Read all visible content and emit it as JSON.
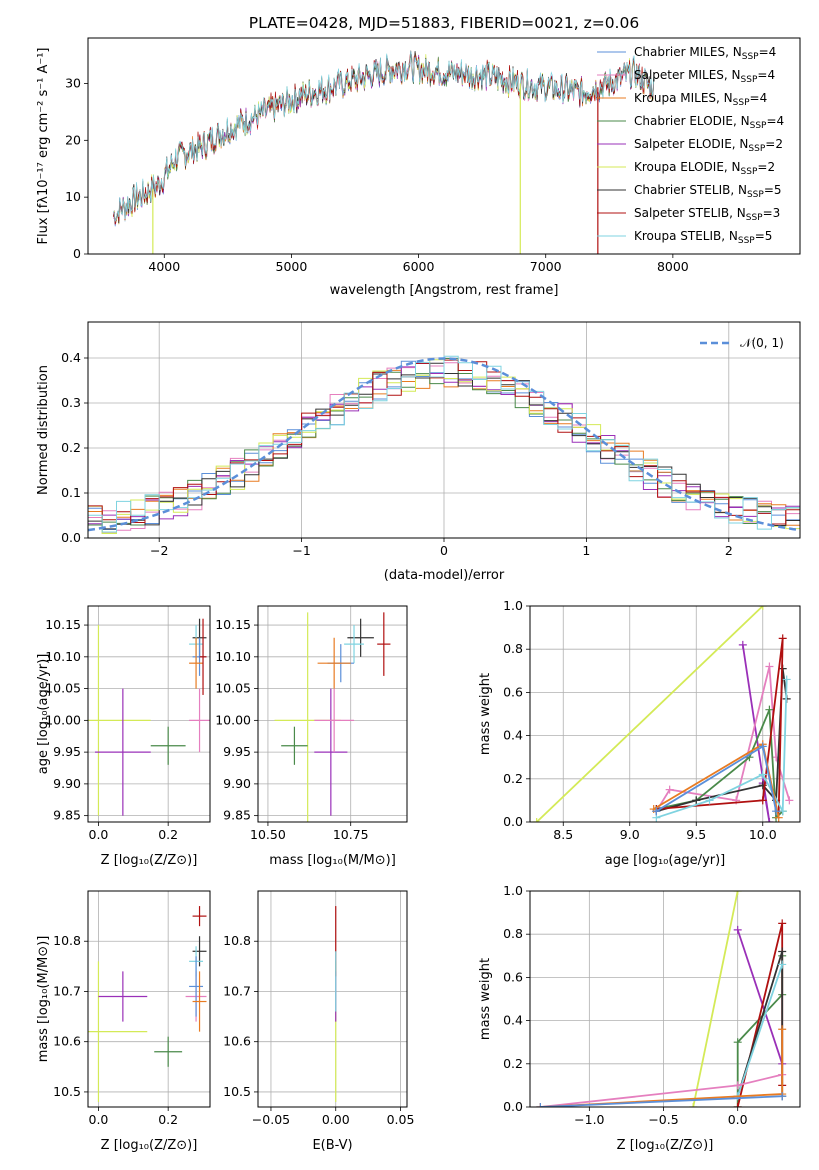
{
  "colors": {
    "chabrier_miles": "#5b8fd9",
    "salpeter_miles": "#e57fbf",
    "kroupa_miles": "#e87b22",
    "chabrier_elodie": "#4a8a4a",
    "salpeter_elodie": "#9a30b8",
    "kroupa_elodie": "#d4ea57",
    "chabrier_stelib": "#333333",
    "salpeter_stelib": "#b01010",
    "kroupa_stelib": "#7fd3e0",
    "normal": "#5b8fd9"
  },
  "chart_data": [
    {
      "id": "spectrum",
      "type": "line",
      "title": "PLATE=0428, MJD=51883, FIBERID=0021, z=0.06",
      "xlabel": "wavelength [Angstrom, rest frame]",
      "ylabel": "Flux [fλ10⁻¹⁷ erg cm⁻² s⁻¹ A⁻¹]",
      "xlim": [
        3400,
        9000
      ],
      "ylim": [
        0,
        38
      ],
      "xticks": [
        "4000",
        "5000",
        "6000",
        "7000",
        "8000"
      ],
      "yticks": [
        "0",
        "10",
        "20",
        "30"
      ],
      "continuum": [
        [
          3600,
          7
        ],
        [
          3800,
          10
        ],
        [
          3950,
          12
        ],
        [
          4100,
          17
        ],
        [
          4300,
          19
        ],
        [
          4500,
          22
        ],
        [
          4800,
          25
        ],
        [
          5100,
          28
        ],
        [
          5400,
          30
        ],
        [
          5700,
          32
        ],
        [
          5900,
          33
        ],
        [
          6200,
          32
        ],
        [
          6500,
          31.5
        ],
        [
          6800,
          30
        ],
        [
          7100,
          29
        ],
        [
          7300,
          28.5
        ],
        [
          7500,
          30
        ],
        [
          7700,
          32
        ],
        [
          7800,
          30
        ],
        [
          7850,
          29
        ]
      ],
      "drops": [
        [
          3910,
          "kroupa_elodie"
        ],
        [
          6800,
          "kroupa_elodie"
        ],
        [
          7410,
          "salpeter_stelib"
        ]
      ],
      "series": [
        {
          "key": "chabrier_miles",
          "name": "Chabrier MILES, N",
          "sub": "SSP",
          "suffix": "=4"
        },
        {
          "key": "salpeter_miles",
          "name": "Salpeter MILES, N",
          "sub": "SSP",
          "suffix": "=4"
        },
        {
          "key": "kroupa_miles",
          "name": "Kroupa MILES, N",
          "sub": "SSP",
          "suffix": "=4"
        },
        {
          "key": "chabrier_elodie",
          "name": "Chabrier ELODIE, N",
          "sub": "SSP",
          "suffix": "=4"
        },
        {
          "key": "salpeter_elodie",
          "name": "Salpeter ELODIE, N",
          "sub": "SSP",
          "suffix": "=2"
        },
        {
          "key": "kroupa_elodie",
          "name": "Kroupa ELODIE, N",
          "sub": "SSP",
          "suffix": "=2"
        },
        {
          "key": "chabrier_stelib",
          "name": "Chabrier STELIB, N",
          "sub": "SSP",
          "suffix": "=5"
        },
        {
          "key": "salpeter_stelib",
          "name": "Salpeter STELIB, N",
          "sub": "SSP",
          "suffix": "=3"
        },
        {
          "key": "kroupa_stelib",
          "name": "Kroupa STELIB, N",
          "sub": "SSP",
          "suffix": "=5"
        }
      ]
    },
    {
      "id": "residuals",
      "type": "histogram",
      "xlabel": "(data-model)/error",
      "ylabel": "Normed distribution",
      "xlim": [
        -2.5,
        2.5
      ],
      "ylim": [
        0,
        0.48
      ],
      "xticks": [
        "−2",
        "−1",
        "0",
        "1",
        "2"
      ],
      "yticks": [
        "0.0",
        "0.1",
        "0.2",
        "0.3",
        "0.4"
      ],
      "bin_width": 0.1,
      "legend_label": "𝒩(0, 1)",
      "series_keys": [
        "chabrier_miles",
        "salpeter_miles",
        "kroupa_miles",
        "chabrier_elodie",
        "salpeter_elodie",
        "kroupa_elodie",
        "chabrier_stelib",
        "salpeter_stelib",
        "kroupa_stelib"
      ]
    },
    {
      "id": "age_vs_Z",
      "type": "scatter",
      "xlabel": "Z [log₁₀(Z/Z⊙)]",
      "ylabel": "age  [log₁₀(age/yr)]",
      "xlim": [
        -0.03,
        0.32
      ],
      "ylim": [
        9.84,
        10.18
      ],
      "xticks": [
        "0.0",
        "0.2"
      ],
      "xtick_values": [
        0.0,
        0.2
      ],
      "yticks": [
        "9.85",
        "9.90",
        "9.95",
        "10.00",
        "10.05",
        "10.10",
        "10.15"
      ],
      "ytick_values": [
        9.85,
        9.9,
        9.95,
        10.0,
        10.05,
        10.1,
        10.15
      ],
      "points": [
        {
          "key": "kroupa_elodie",
          "x": 0.0,
          "y": 10.0,
          "xerr": 0.15,
          "yerr": 0.15
        },
        {
          "key": "salpeter_elodie",
          "x": 0.07,
          "y": 9.95,
          "xerr": 0.08,
          "yerr": 0.1
        },
        {
          "key": "chabrier_elodie",
          "x": 0.2,
          "y": 9.96,
          "xerr": 0.05,
          "yerr": 0.03
        },
        {
          "key": "salpeter_miles",
          "x": 0.29,
          "y": 10.0,
          "xerr": 0.03,
          "yerr": 0.05
        },
        {
          "key": "chabrier_stelib",
          "x": 0.29,
          "y": 10.13,
          "xerr": 0.02,
          "yerr": 0.03
        },
        {
          "key": "kroupa_stelib",
          "x": 0.28,
          "y": 10.12,
          "xerr": 0.02,
          "yerr": 0.03
        },
        {
          "key": "chabrier_miles",
          "x": 0.29,
          "y": 10.1,
          "xerr": 0.02,
          "yerr": 0.03
        },
        {
          "key": "kroupa_miles",
          "x": 0.28,
          "y": 10.09,
          "xerr": 0.02,
          "yerr": 0.04
        },
        {
          "key": "salpeter_stelib",
          "x": 0.3,
          "y": 10.1,
          "xerr": 0.01,
          "yerr": 0.06
        }
      ]
    },
    {
      "id": "age_vs_mass",
      "type": "scatter",
      "xlabel": "mass [log₁₀(M/M⊙)]",
      "ylabel": "",
      "xlim": [
        10.47,
        10.92
      ],
      "ylim": [
        9.84,
        10.18
      ],
      "xticks": [
        "10.50",
        "10.75"
      ],
      "xtick_values": [
        10.5,
        10.75
      ],
      "yticks": [
        "9.85",
        "9.90",
        "9.95",
        "10.00",
        "10.05",
        "10.10",
        "10.15"
      ],
      "ytick_values": [
        9.85,
        9.9,
        9.95,
        10.0,
        10.05,
        10.1,
        10.15
      ],
      "points": [
        {
          "key": "kroupa_elodie",
          "x": 10.62,
          "y": 10.0,
          "xerr": 0.1,
          "yerr": 0.17
        },
        {
          "key": "salpeter_elodie",
          "x": 10.69,
          "y": 9.95,
          "xerr": 0.05,
          "yerr": 0.1
        },
        {
          "key": "chabrier_elodie",
          "x": 10.58,
          "y": 9.96,
          "xerr": 0.04,
          "yerr": 0.03
        },
        {
          "key": "salpeter_miles",
          "x": 10.7,
          "y": 10.0,
          "xerr": 0.06,
          "yerr": 0.05
        },
        {
          "key": "chabrier_stelib",
          "x": 10.78,
          "y": 10.13,
          "xerr": 0.04,
          "yerr": 0.03
        },
        {
          "key": "kroupa_stelib",
          "x": 10.76,
          "y": 10.12,
          "xerr": 0.03,
          "yerr": 0.03
        },
        {
          "key": "chabrier_miles",
          "x": 10.72,
          "y": 10.09,
          "xerr": 0.04,
          "yerr": 0.03
        },
        {
          "key": "kroupa_miles",
          "x": 10.7,
          "y": 10.09,
          "xerr": 0.05,
          "yerr": 0.04
        },
        {
          "key": "salpeter_stelib",
          "x": 10.85,
          "y": 10.12,
          "xerr": 0.02,
          "yerr": 0.05
        }
      ]
    },
    {
      "id": "weight_vs_age",
      "type": "line",
      "xlabel": "age  [log₁₀(age/yr)]",
      "ylabel": "mass weight",
      "xlim": [
        8.25,
        10.28
      ],
      "ylim": [
        0,
        1
      ],
      "xticks": [
        "8.5",
        "9.0",
        "9.5",
        "10.0"
      ],
      "xtick_values": [
        8.5,
        9.0,
        9.5,
        10.0
      ],
      "yticks": [
        "0.0",
        "0.2",
        "0.4",
        "0.6",
        "0.8",
        "1.0"
      ],
      "ytick_values": [
        0,
        0.2,
        0.4,
        0.6,
        0.8,
        1.0
      ],
      "series": [
        {
          "key": "kroupa_elodie",
          "x": [
            8.3,
            10.0
          ],
          "y": [
            0.0,
            1.0
          ]
        },
        {
          "key": "salpeter_elodie",
          "x": [
            9.85,
            10.05,
            10.0
          ],
          "y": [
            0.82,
            0.0,
            0.18
          ]
        },
        {
          "key": "salpeter_miles",
          "x": [
            9.2,
            9.3,
            9.8,
            10.05,
            10.1,
            10.2
          ],
          "y": [
            0.05,
            0.15,
            0.1,
            0.72,
            0.3,
            0.1
          ]
        },
        {
          "key": "chabrier_elodie",
          "x": [
            9.2,
            9.5,
            9.9,
            10.05,
            10.1,
            10.15
          ],
          "y": [
            0.06,
            0.1,
            0.3,
            0.52,
            0.02,
            0.05
          ]
        },
        {
          "key": "chabrier_stelib",
          "x": [
            9.2,
            9.5,
            10.0,
            10.1,
            10.15,
            10.18
          ],
          "y": [
            0.05,
            0.1,
            0.17,
            0.1,
            0.71,
            0.57
          ]
        },
        {
          "key": "salpeter_stelib",
          "x": [
            9.2,
            10.0,
            10.15,
            10.12
          ],
          "y": [
            0.06,
            0.1,
            0.85,
            0.05
          ]
        },
        {
          "key": "kroupa_stelib",
          "x": [
            9.2,
            9.6,
            10.0,
            10.15,
            10.18
          ],
          "y": [
            0.02,
            0.1,
            0.22,
            0.05,
            0.66
          ]
        },
        {
          "key": "kroupa_miles",
          "x": [
            9.18,
            10.0,
            10.12
          ],
          "y": [
            0.06,
            0.36,
            0.02
          ]
        },
        {
          "key": "chabrier_miles",
          "x": [
            9.2,
            10.0,
            10.1
          ],
          "y": [
            0.05,
            0.35,
            0.05
          ]
        }
      ]
    },
    {
      "id": "mass_vs_Z",
      "type": "scatter",
      "xlabel": "Z [log₁₀(Z/Z⊙)]",
      "ylabel": "mass [log₁₀(M/M⊙)]",
      "xlim": [
        -0.03,
        0.32
      ],
      "ylim": [
        10.47,
        10.9
      ],
      "xticks": [
        "0.0",
        "0.2"
      ],
      "xtick_values": [
        0.0,
        0.2
      ],
      "yticks": [
        "10.5",
        "10.6",
        "10.7",
        "10.8"
      ],
      "ytick_values": [
        10.5,
        10.6,
        10.7,
        10.8
      ],
      "points": [
        {
          "key": "kroupa_elodie",
          "x": 0.0,
          "y": 10.62,
          "xerr": 0.14,
          "yerr": 0.14
        },
        {
          "key": "salpeter_elodie",
          "x": 0.07,
          "y": 10.69,
          "xerr": 0.07,
          "yerr": 0.05
        },
        {
          "key": "chabrier_elodie",
          "x": 0.2,
          "y": 10.58,
          "xerr": 0.04,
          "yerr": 0.03
        },
        {
          "key": "salpeter_miles",
          "x": 0.28,
          "y": 10.69,
          "xerr": 0.03,
          "yerr": 0.05
        },
        {
          "key": "salpeter_stelib",
          "x": 0.29,
          "y": 10.85,
          "xerr": 0.02,
          "yerr": 0.02
        },
        {
          "key": "chabrier_stelib",
          "x": 0.29,
          "y": 10.78,
          "xerr": 0.02,
          "yerr": 0.03
        },
        {
          "key": "kroupa_stelib",
          "x": 0.28,
          "y": 10.76,
          "xerr": 0.02,
          "yerr": 0.03
        },
        {
          "key": "chabrier_miles",
          "x": 0.28,
          "y": 10.71,
          "xerr": 0.02,
          "yerr": 0.06
        },
        {
          "key": "kroupa_miles",
          "x": 0.29,
          "y": 10.68,
          "xerr": 0.02,
          "yerr": 0.06
        }
      ]
    },
    {
      "id": "mass_vs_ebv",
      "type": "scatter",
      "xlabel": "E(B-V)",
      "ylabel": "",
      "xlim": [
        -0.06,
        0.055
      ],
      "ylim": [
        10.47,
        10.9
      ],
      "xticks": [
        "−0.05",
        "0.00",
        "0.05"
      ],
      "xtick_values": [
        -0.05,
        0.0,
        0.05
      ],
      "yticks": [
        "10.5",
        "10.6",
        "10.7",
        "10.8"
      ],
      "ytick_values": [
        10.5,
        10.6,
        10.7,
        10.8
      ],
      "points": [
        {
          "key": "kroupa_elodie",
          "x": 0.0,
          "y": 10.62,
          "xerr": 0.0,
          "yerr": 0.14
        },
        {
          "key": "salpeter_elodie",
          "x": 0.0,
          "y": 10.69,
          "xerr": 0.0,
          "yerr": 0.05
        },
        {
          "key": "salpeter_stelib",
          "x": 0.0,
          "y": 10.8,
          "xerr": 0.0,
          "yerr": 0.07
        },
        {
          "key": "kroupa_stelib",
          "x": 0.0,
          "y": 10.72,
          "xerr": 0.0,
          "yerr": 0.06
        }
      ]
    },
    {
      "id": "weight_vs_Z",
      "type": "line",
      "xlabel": "Z [log₁₀(Z/Z⊙)]",
      "ylabel": "mass weight",
      "xlim": [
        -1.4,
        0.42
      ],
      "ylim": [
        0,
        1
      ],
      "xticks": [
        "−1.0",
        "−0.5",
        "0.0"
      ],
      "xtick_values": [
        -1.0,
        -0.5,
        0.0
      ],
      "yticks": [
        "0.0",
        "0.2",
        "0.4",
        "0.6",
        "0.8",
        "1.0"
      ],
      "ytick_values": [
        0,
        0.2,
        0.4,
        0.6,
        0.8,
        1.0
      ],
      "series": [
        {
          "key": "kroupa_elodie",
          "x": [
            -0.3,
            0.0
          ],
          "y": [
            0.0,
            1.0
          ]
        },
        {
          "key": "salpeter_elodie",
          "x": [
            0.0,
            0.3
          ],
          "y": [
            0.82,
            0.2
          ]
        },
        {
          "key": "chabrier_elodie",
          "x": [
            0.0,
            0.0,
            0.3,
            0.3
          ],
          "y": [
            0.0,
            0.3,
            0.52,
            0.7
          ]
        },
        {
          "key": "salpeter_stelib",
          "x": [
            0.0,
            0.3,
            0.3
          ],
          "y": [
            0.0,
            0.85,
            0.1
          ]
        },
        {
          "key": "chabrier_stelib",
          "x": [
            0.0,
            0.3,
            0.3
          ],
          "y": [
            0.05,
            0.72,
            0.05
          ]
        },
        {
          "key": "kroupa_stelib",
          "x": [
            0.0,
            0.3
          ],
          "y": [
            0.05,
            0.66
          ]
        },
        {
          "key": "salpeter_miles",
          "x": [
            -1.33,
            0.0,
            0.3
          ],
          "y": [
            0.0,
            0.1,
            0.15
          ]
        },
        {
          "key": "kroupa_miles",
          "x": [
            -1.33,
            0.3,
            0.3
          ],
          "y": [
            0.0,
            0.06,
            0.36
          ]
        },
        {
          "key": "chabrier_miles",
          "x": [
            -1.33,
            0.3
          ],
          "y": [
            0.0,
            0.05
          ]
        }
      ]
    }
  ]
}
